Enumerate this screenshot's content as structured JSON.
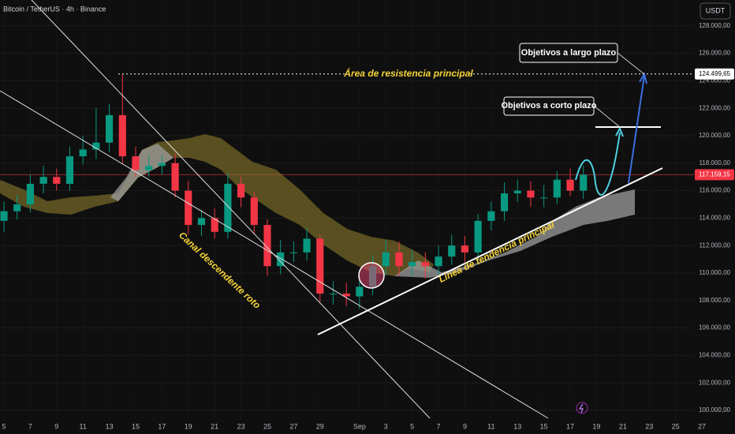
{
  "header": {
    "symbol": "Bitcoin / TetherUS · 4h · Binance",
    "currency_button": "USDT"
  },
  "chart_data": {
    "type": "candlestick",
    "open": [
      113800,
      114500,
      115000,
      116500,
      117000,
      116500,
      118500,
      119000,
      119500,
      121500,
      118500,
      117500,
      117800,
      118000,
      116000,
      113500,
      114000,
      113000,
      116500,
      115500,
      113500,
      110500,
      111500,
      111500,
      112500,
      108500,
      108500,
      108300,
      109000,
      110500,
      111500,
      110500,
      110800,
      110500,
      111200,
      112000,
      111500,
      113800,
      114500,
      115800,
      116000,
      115500,
      115500,
      116800,
      116000
    ],
    "high": [
      115200,
      115700,
      117200,
      117800,
      117600,
      119200,
      120000,
      122000,
      122300,
      124499.65,
      119200,
      118600,
      118600,
      118700,
      116700,
      114600,
      114700,
      117300,
      117000,
      115900,
      113900,
      112400,
      112300,
      113300,
      112800,
      109400,
      109300,
      109800,
      111300,
      112400,
      112300,
      111700,
      111500,
      112000,
      112800,
      112700,
      114300,
      115200,
      116600,
      116800,
      116700,
      116400,
      117400,
      117600,
      117800
    ],
    "low": [
      113000,
      113900,
      114400,
      115800,
      116000,
      116000,
      117900,
      118300,
      118800,
      118000,
      117000,
      117000,
      117200,
      115500,
      112800,
      112700,
      112500,
      112500,
      114800,
      112800,
      109800,
      109900,
      110800,
      110900,
      107900,
      107700,
      107600,
      107400,
      108400,
      109800,
      109800,
      109800,
      109600,
      109900,
      110600,
      110800,
      110900,
      113100,
      113800,
      115200,
      114800,
      114800,
      115000,
      115600,
      115400
    ],
    "close": [
      114500,
      115000,
      116500,
      117000,
      116500,
      118500,
      119000,
      119500,
      121500,
      118500,
      117500,
      117800,
      118000,
      116000,
      113500,
      114000,
      113000,
      116500,
      115500,
      113500,
      110500,
      111500,
      111500,
      112500,
      108500,
      108500,
      108300,
      109000,
      110500,
      111500,
      110500,
      110800,
      110500,
      111200,
      112000,
      111500,
      113800,
      114500,
      115800,
      116000,
      115500,
      115500,
      116800,
      116000,
      117159.15
    ],
    "up_color": "#089981",
    "down_color": "#f23645",
    "xlim": [
      -0.3,
      52.4
    ],
    "xticks": [
      {
        "value": 0,
        "label": "5"
      },
      {
        "value": 2,
        "label": "7"
      },
      {
        "value": 4,
        "label": "9"
      },
      {
        "value": 6,
        "label": "11"
      },
      {
        "value": 8,
        "label": "13"
      },
      {
        "value": 10,
        "label": "15"
      },
      {
        "value": 12,
        "label": "17"
      },
      {
        "value": 14,
        "label": "19"
      },
      {
        "value": 16,
        "label": "21"
      },
      {
        "value": 18,
        "label": "23"
      },
      {
        "value": 20,
        "label": "25"
      },
      {
        "value": 22,
        "label": "27"
      },
      {
        "value": 24,
        "label": "29"
      },
      {
        "value": 27,
        "label": "Sep"
      },
      {
        "value": 29,
        "label": "3"
      },
      {
        "value": 31,
        "label": "5"
      },
      {
        "value": 33,
        "label": "7"
      },
      {
        "value": 35,
        "label": "9"
      },
      {
        "value": 37,
        "label": "11"
      },
      {
        "value": 39,
        "label": "13"
      },
      {
        "value": 41,
        "label": "15"
      },
      {
        "value": 43,
        "label": "17"
      },
      {
        "value": 45,
        "label": "19"
      },
      {
        "value": 47,
        "label": "21"
      },
      {
        "value": 49,
        "label": "23"
      },
      {
        "value": 51,
        "label": "25"
      },
      {
        "value": 53,
        "label": "27"
      }
    ],
    "ylim": [
      98276,
      129885
    ],
    "yticks": [
      {
        "value": 100000,
        "label": "100.000,00"
      },
      {
        "value": 102000,
        "label": "102.000,00"
      },
      {
        "value": 104000,
        "label": "104.000,00"
      },
      {
        "value": 106000,
        "label": "106.000,00"
      },
      {
        "value": 108000,
        "label": "108.000,00"
      },
      {
        "value": 110000,
        "label": "110.000,00"
      },
      {
        "value": 112000,
        "label": "112.000,00"
      },
      {
        "value": 114000,
        "label": "114.000,00"
      },
      {
        "value": 116000,
        "label": "116.000,00"
      },
      {
        "value": 118000,
        "label": "118.000,00"
      },
      {
        "value": 120000,
        "label": "120.000,00"
      },
      {
        "value": 122000,
        "label": "122.000,00"
      },
      {
        "value": 124000,
        "label": "124.000,00"
      },
      {
        "value": 126000,
        "label": "126.000,00"
      },
      {
        "value": 128000,
        "label": "128.000,00"
      }
    ],
    "grid": true,
    "resistance": {
      "value": 124499.65,
      "label": "124.499,65"
    },
    "last_price": {
      "value": 117159.15,
      "label": "117.159,15"
    },
    "annotations": {
      "resistance_area": "Área de resistencia principal",
      "long_term": "Objetivos a largo plazo",
      "short_term": "Objetivos a corto plazo",
      "channel": "Canal descendente roto",
      "trendline": "Línea de tendencia principal"
    }
  }
}
